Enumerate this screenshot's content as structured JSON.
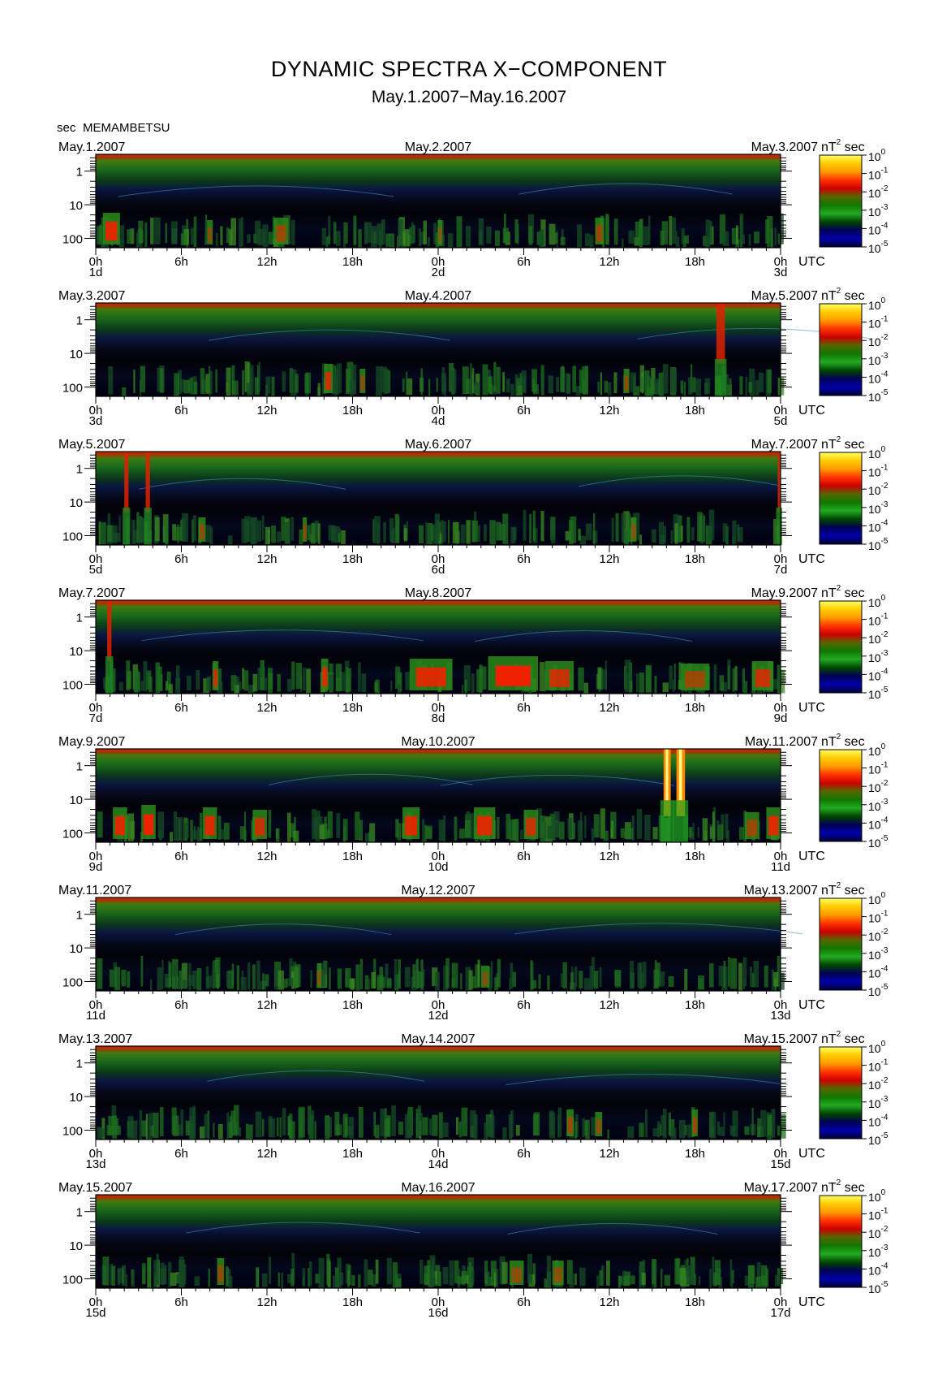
{
  "header": {
    "title": "DYNAMIC SPECTRA X−COMPONENT",
    "subtitle": "May.1.2007−May.16.2007",
    "unit_label": "sec",
    "station": "MEMAMBETSU"
  },
  "chart_data": {
    "type": "heatmap",
    "title": "DYNAMIC SPECTRA X−COMPONENT",
    "subtitle": "May.1.2007−May.16.2007",
    "ylabel": "sec",
    "y_ticks": [
      "1",
      "10",
      "100"
    ],
    "y_scale": "log",
    "x_ticks": [
      "0h",
      "6h",
      "12h",
      "18h",
      "0h",
      "6h",
      "12h",
      "18h",
      "0h"
    ],
    "x_unit": "UTC",
    "colorbar": {
      "unit": "nT",
      "unit_exponent": "2",
      "unit_suffix": "sec",
      "ticks": [
        {
          "base": "10",
          "exp": "0"
        },
        {
          "base": "10",
          "exp": "-1"
        },
        {
          "base": "10",
          "exp": "-2"
        },
        {
          "base": "10",
          "exp": "-3"
        },
        {
          "base": "10",
          "exp": "-4"
        },
        {
          "base": "10",
          "exp": "-5"
        }
      ],
      "colors": [
        "#ffff66",
        "#ffcc00",
        "#ff9900",
        "#ff3300",
        "#cc0000",
        "#556600",
        "#117700",
        "#22aa22",
        "#004400",
        "#000055",
        "#0000aa",
        "#000033"
      ]
    },
    "panels": [
      {
        "date_left": "May.1.2007",
        "date_mid": "May.2.2007",
        "date_right": "May.3.2007",
        "day_start": "1d",
        "day_mid": "2d",
        "day_end": "3d",
        "events": [
          {
            "h": 0.5,
            "w": 1.2,
            "p": 0.9
          },
          {
            "h": 7.8,
            "w": 0.4,
            "p": 0.6
          },
          {
            "h": 12.5,
            "w": 1.0,
            "p": 0.7
          },
          {
            "h": 24.0,
            "w": 0.3,
            "p": 0.6
          },
          {
            "h": 35.0,
            "w": 0.6,
            "p": 0.7
          }
        ]
      },
      {
        "date_left": "May.3.2007",
        "date_mid": "May.4.2007",
        "date_right": "May.5.2007",
        "day_start": "3d",
        "day_mid": "4d",
        "day_end": "5d",
        "events": [
          {
            "h": 16.0,
            "w": 0.6,
            "p": 0.8
          },
          {
            "h": 18.5,
            "w": 0.4,
            "p": 0.6
          },
          {
            "h": 43.5,
            "w": 0.6,
            "p": 1.0,
            "tall": true
          },
          {
            "h": 37.0,
            "w": 0.4,
            "p": 0.6
          }
        ]
      },
      {
        "date_left": "May.5.2007",
        "date_mid": "May.6.2007",
        "date_right": "May.7.2007",
        "day_start": "5d",
        "day_mid": "6d",
        "day_end": "7d",
        "events": [
          {
            "h": 2.0,
            "w": 0.3,
            "p": 0.7,
            "tall": true
          },
          {
            "h": 3.5,
            "w": 0.3,
            "p": 0.7,
            "tall": true
          },
          {
            "h": 7.2,
            "w": 0.5,
            "p": 0.6
          },
          {
            "h": 14.5,
            "w": 0.3,
            "p": 0.6
          },
          {
            "h": 37.5,
            "w": 0.4,
            "p": 0.6
          },
          {
            "h": 47.8,
            "w": 0.2,
            "p": 0.7,
            "tall": true
          }
        ]
      },
      {
        "date_left": "May.7.2007",
        "date_mid": "May.8.2007",
        "date_right": "May.9.2007",
        "day_start": "7d",
        "day_mid": "8d",
        "day_end": "9d",
        "events": [
          {
            "h": 0.8,
            "w": 0.3,
            "p": 1.0,
            "tall": true
          },
          {
            "h": 8.2,
            "w": 0.4,
            "p": 0.8
          },
          {
            "h": 15.8,
            "w": 0.5,
            "p": 0.9
          },
          {
            "h": 22.0,
            "w": 3.0,
            "p": 0.9
          },
          {
            "h": 27.5,
            "w": 3.5,
            "p": 1.0
          },
          {
            "h": 31.5,
            "w": 2.0,
            "p": 0.8
          },
          {
            "h": 41.0,
            "w": 2.0,
            "p": 0.7
          },
          {
            "h": 46.0,
            "w": 1.5,
            "p": 0.8
          }
        ]
      },
      {
        "date_left": "May.9.2007",
        "date_mid": "May.10.2007",
        "date_right": "May.11.2007",
        "day_start": "9d",
        "day_mid": "10d",
        "day_end": "11d",
        "events": [
          {
            "h": 1.2,
            "w": 1.0,
            "p": 0.9
          },
          {
            "h": 3.2,
            "w": 1.0,
            "p": 1.0
          },
          {
            "h": 7.5,
            "w": 1.0,
            "p": 0.9
          },
          {
            "h": 11.0,
            "w": 1.0,
            "p": 0.8
          },
          {
            "h": 21.5,
            "w": 1.2,
            "p": 0.9
          },
          {
            "h": 26.5,
            "w": 1.5,
            "p": 0.9
          },
          {
            "h": 30.0,
            "w": 1.0,
            "p": 0.8
          },
          {
            "h": 39.8,
            "w": 0.5,
            "p": 1.0,
            "storm": true
          },
          {
            "h": 40.7,
            "w": 0.6,
            "p": 1.0,
            "storm": true
          },
          {
            "h": 45.5,
            "w": 1.0,
            "p": 0.7
          },
          {
            "h": 47.0,
            "w": 1.0,
            "p": 0.9
          }
        ]
      },
      {
        "date_left": "May.11.2007",
        "date_mid": "May.12.2007",
        "date_right": "May.13.2007",
        "day_start": "11d",
        "day_mid": "12d",
        "day_end": "13d",
        "events": [
          {
            "h": 15.5,
            "w": 0.3,
            "p": 0.6
          },
          {
            "h": 27.0,
            "w": 0.6,
            "p": 0.5
          }
        ]
      },
      {
        "date_left": "May.13.2007",
        "date_mid": "May.14.2007",
        "date_right": "May.15.2007",
        "day_start": "13d",
        "day_mid": "14d",
        "day_end": "15d",
        "events": [
          {
            "h": 33.0,
            "w": 0.5,
            "p": 0.7
          },
          {
            "h": 35.0,
            "w": 0.5,
            "p": 0.6
          },
          {
            "h": 41.8,
            "w": 0.4,
            "p": 0.7
          }
        ]
      },
      {
        "date_left": "May.15.2007",
        "date_mid": "May.16.2007",
        "date_right": "May.17.2007",
        "day_start": "15d",
        "day_mid": "16d",
        "day_end": "17d",
        "events": [
          {
            "h": 8.5,
            "w": 0.5,
            "p": 0.7
          },
          {
            "h": 29.0,
            "w": 1.0,
            "p": 0.6
          },
          {
            "h": 32.0,
            "w": 0.8,
            "p": 0.6
          }
        ]
      }
    ]
  }
}
